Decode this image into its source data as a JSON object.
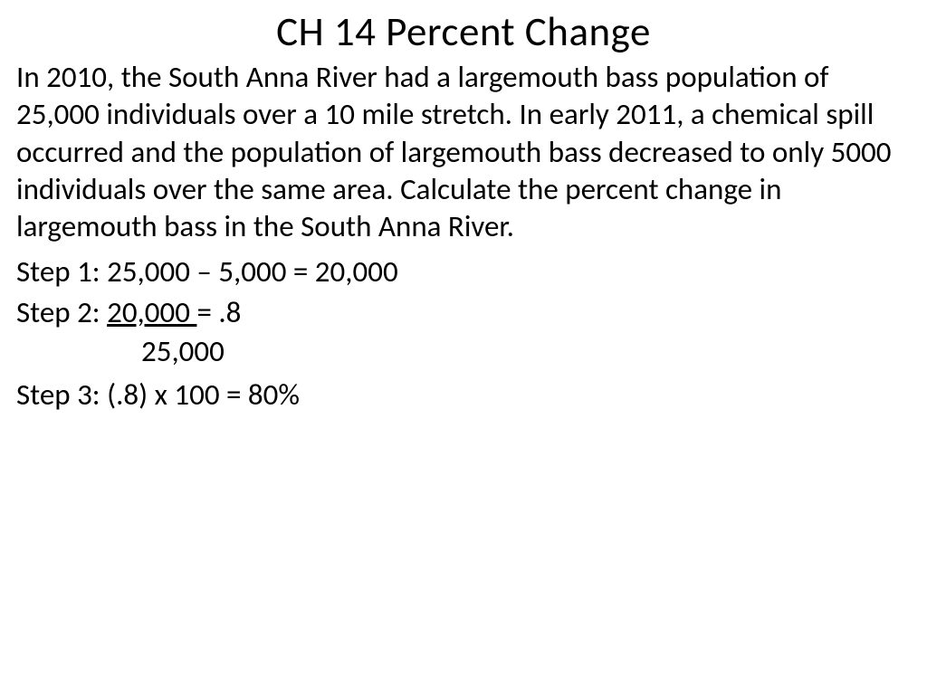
{
  "slide": {
    "title": "CH 14 Percent Change",
    "problem": "In 2010, the South Anna River had a largemouth bass population of 25,000 individuals over a 10 mile stretch.  In early 2011, a chemical spill occurred and the population of largemouth bass decreased to only 5000 individuals over the same area. Calculate the percent change in largemouth bass in the South Anna River.",
    "step1": "Step 1: 25,000 – 5,000 = 20,000",
    "step2_prefix": "Step 2:  ",
    "step2_numerator": "20,000 ",
    "step2_suffix": "= .8",
    "step2_denominator": "25,000",
    "step3": "Step 3:  (.8) x 100 = 80%"
  },
  "style": {
    "background_color": "#ffffff",
    "text_color": "#000000",
    "title_fontsize": 45,
    "body_fontsize": 33,
    "font_family": "Calibri"
  }
}
